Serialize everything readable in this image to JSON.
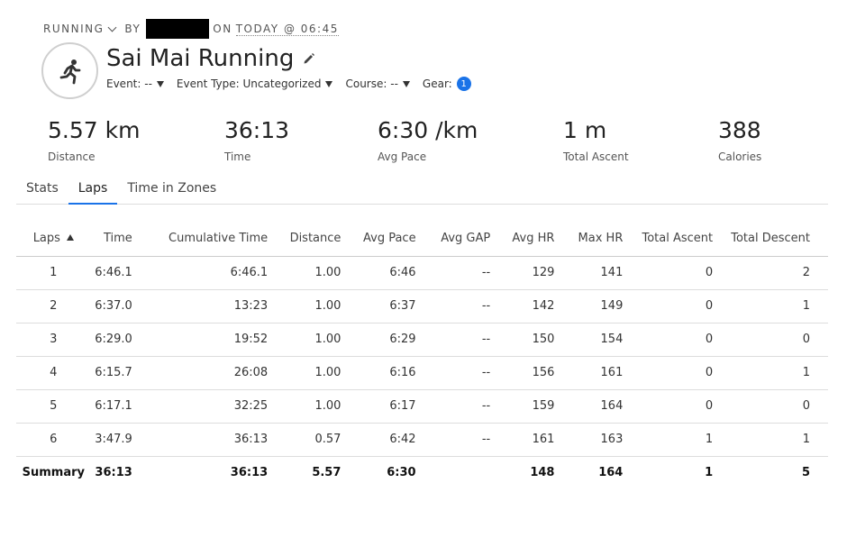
{
  "header": {
    "activity_type": "RUNNING",
    "by_label": "BY",
    "on_label": "ON",
    "date": "TODAY @ 06:45",
    "title": "Sai Mai Running",
    "icon": "runner-icon"
  },
  "meta": {
    "event": "Event: --",
    "event_type": "Event Type: Uncategorized",
    "course": "Course: --",
    "gear": "Gear:",
    "gear_count": "1"
  },
  "stats": [
    {
      "value": "5.57 km",
      "label": "Distance"
    },
    {
      "value": "36:13",
      "label": "Time"
    },
    {
      "value": "6:30 /km",
      "label": "Avg Pace"
    },
    {
      "value": "1 m",
      "label": "Total Ascent"
    },
    {
      "value": "388",
      "label": "Calories"
    }
  ],
  "tabs": [
    "Stats",
    "Laps",
    "Time in Zones"
  ],
  "active_tab": "Laps",
  "table": {
    "headers": [
      "Laps",
      "Time",
      "Cumulative Time",
      "Distance",
      "Avg Pace",
      "Avg GAP",
      "Avg HR",
      "Max HR",
      "Total Ascent",
      "Total Descent"
    ],
    "rows": [
      [
        "1",
        "6:46.1",
        "6:46.1",
        "1.00",
        "6:46",
        "--",
        "129",
        "141",
        "0",
        "2"
      ],
      [
        "2",
        "6:37.0",
        "13:23",
        "1.00",
        "6:37",
        "--",
        "142",
        "149",
        "0",
        "1"
      ],
      [
        "3",
        "6:29.0",
        "19:52",
        "1.00",
        "6:29",
        "--",
        "150",
        "154",
        "0",
        "0"
      ],
      [
        "4",
        "6:15.7",
        "26:08",
        "1.00",
        "6:16",
        "--",
        "156",
        "161",
        "0",
        "1"
      ],
      [
        "5",
        "6:17.1",
        "32:25",
        "1.00",
        "6:17",
        "--",
        "159",
        "164",
        "0",
        "0"
      ],
      [
        "6",
        "3:47.9",
        "36:13",
        "0.57",
        "6:42",
        "--",
        "161",
        "163",
        "1",
        "1"
      ]
    ],
    "summary": [
      "Summary",
      "36:13",
      "36:13",
      "5.57",
      "6:30",
      "",
      "148",
      "164",
      "1",
      "5"
    ]
  },
  "colors": {
    "accent": "#1a73e8",
    "text": "#222222",
    "border": "#dddddd"
  }
}
